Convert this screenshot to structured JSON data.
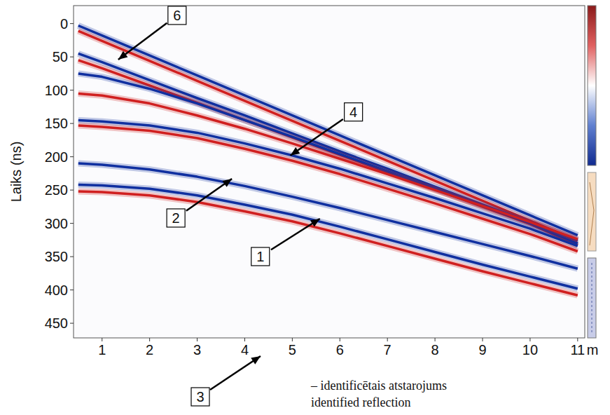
{
  "chart_data": {
    "type": "line",
    "x_label": "m",
    "y_label": "Laiks (ns)",
    "xlim": [
      0.4,
      11.15
    ],
    "xticks": [
      1,
      2,
      3,
      4,
      5,
      6,
      7,
      8,
      9,
      10,
      11
    ],
    "ylim": [
      -27,
      472
    ],
    "yticks": [
      0,
      50,
      100,
      150,
      200,
      250,
      300,
      350,
      400,
      450
    ],
    "x": [
      0.5,
      1,
      2,
      3,
      4,
      5,
      6,
      7,
      8,
      9,
      10,
      11
    ],
    "series": [
      {
        "color": "#1030a0",
        "values": [
          3,
          18,
          48,
          78,
          108,
          138,
          168,
          198,
          228,
          258,
          288,
          318
        ]
      },
      {
        "color": "#d02020",
        "values": [
          11,
          26,
          56,
          86,
          116,
          146,
          176,
          206,
          236,
          266,
          296,
          326
        ]
      },
      {
        "color": "#1030a0",
        "values": [
          45,
          58,
          85,
          112,
          138,
          165,
          192,
          218,
          245,
          272,
          298,
          325
        ]
      },
      {
        "color": "#d02020",
        "values": [
          55,
          67,
          93,
          119,
          145,
          171,
          197,
          223,
          249,
          275,
          301,
          333
        ]
      },
      {
        "color": "#1030a0",
        "values": [
          75,
          80,
          98,
          120,
          145,
          170,
          196,
          222,
          248,
          274,
          300,
          330
        ]
      },
      {
        "color": "#d02020",
        "values": [
          105,
          108,
          120,
          138,
          158,
          180,
          203,
          226,
          250,
          274,
          298,
          324
        ]
      },
      {
        "color": "#1030a0",
        "values": [
          145,
          147,
          153,
          164,
          180,
          198,
          218,
          240,
          262,
          285,
          308,
          334
        ]
      },
      {
        "color": "#d02020",
        "values": [
          153,
          155,
          161,
          172,
          188,
          206,
          226,
          248,
          270,
          293,
          316,
          342
        ]
      },
      {
        "color": "#1030a0",
        "values": [
          210,
          212,
          219,
          230,
          244,
          260,
          277,
          295,
          313,
          331,
          349,
          368
        ]
      },
      {
        "color": "#1030a0",
        "values": [
          242,
          243,
          248,
          258,
          272,
          287,
          305,
          324,
          343,
          362,
          380,
          398
        ]
      },
      {
        "color": "#d02020",
        "values": [
          252,
          253,
          258,
          268,
          282,
          297,
          315,
          334,
          353,
          372,
          390,
          408
        ]
      }
    ],
    "annotations": [
      {
        "text": "6",
        "x": 1.34,
        "y": 54
      },
      {
        "text": "4",
        "x": 4.96,
        "y": 198
      },
      {
        "text": "2",
        "x": 3.73,
        "y": 233
      },
      {
        "text": "1",
        "x": 5.58,
        "y": 293
      }
    ],
    "note": {
      "label": "3",
      "lines": [
        "– identificētais atstarojums",
        "identified reflection"
      ]
    }
  }
}
